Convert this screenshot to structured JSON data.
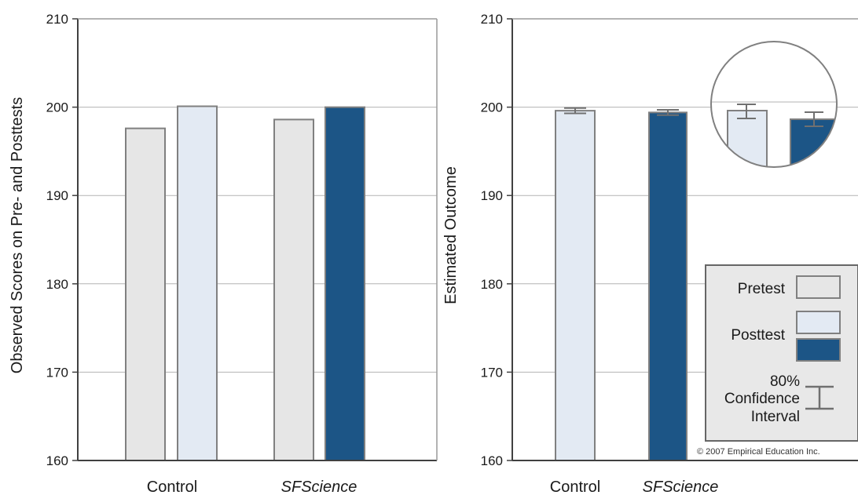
{
  "colors": {
    "pretest": "#e6e6e6",
    "posttest_control": "#e3eaf3",
    "posttest_sf": "#1c5586",
    "bar_stroke": "#808080",
    "grid": "#b3b3b3",
    "axis": "#404040",
    "legend_bg": "#e8e8e8"
  },
  "chart_data": [
    {
      "type": "bar",
      "ylabel": "Observed Scores on Pre- and Posttests",
      "ylim": [
        160,
        210
      ],
      "yticks": [
        "160",
        "170",
        "180",
        "190",
        "200",
        "210"
      ],
      "categories": [
        "Control",
        "SFScience"
      ],
      "series": [
        {
          "name": "Pretest",
          "values": [
            197.6,
            198.6
          ]
        },
        {
          "name": "Posttest",
          "values": [
            200.1,
            200.0
          ]
        }
      ],
      "grid": true
    },
    {
      "type": "bar",
      "ylabel": "Estimated Outcome",
      "ylim": [
        160,
        210
      ],
      "yticks": [
        "160",
        "170",
        "180",
        "190",
        "200",
        "210"
      ],
      "categories": [
        "Control",
        "SFScience"
      ],
      "series": [
        {
          "name": "Posttest",
          "values": [
            199.6,
            199.4
          ],
          "ci80_low": [
            199.3,
            199.1
          ],
          "ci80_high": [
            199.9,
            199.7
          ]
        }
      ],
      "grid": true,
      "inset": "magnified view of bar tops and confidence intervals",
      "legend": {
        "position": "bottom-right",
        "pretest": "Pretest",
        "posttest": "Posttest",
        "ci_line1": "80%",
        "ci_line2": "Confidence",
        "ci_line3": "Interval"
      },
      "copyright": "© 2007 Empirical Education Inc."
    }
  ]
}
